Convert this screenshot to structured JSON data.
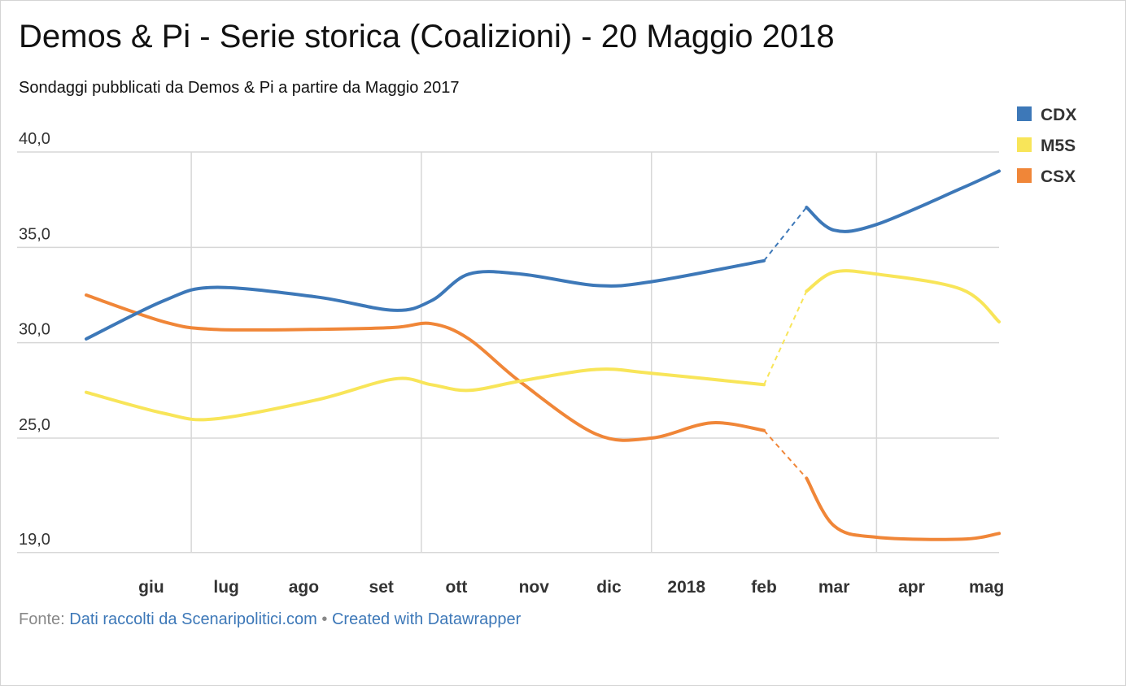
{
  "title": "Demos & Pi - Serie storica (Coalizioni) - 20 Maggio 2018",
  "subtitle": "Sondaggi pubblicati da Demos & Pi a partire da Maggio 2017",
  "footer": {
    "source_label": "Fonte:",
    "source_link": "Dati raccolti da Scenaripolitici.com",
    "separator": "•",
    "credit_link": "Created with Datawrapper"
  },
  "chart_data": {
    "type": "line",
    "ytick_labels": [
      "40,0",
      "35,0",
      "30,0",
      "25,0",
      "19,0"
    ],
    "yticks": [
      40,
      35,
      30,
      25,
      19
    ],
    "ylim": [
      19,
      40
    ],
    "xlim": [
      "2017-05-20",
      "2018-05-20"
    ],
    "xtick_labels": [
      "giu",
      "lug",
      "ago",
      "set",
      "ott",
      "nov",
      "dic",
      "2018",
      "feb",
      "mar",
      "apr",
      "mag"
    ],
    "xticks": [
      "2017-06-15",
      "2017-07-15",
      "2017-08-15",
      "2017-09-15",
      "2017-10-15",
      "2017-11-15",
      "2017-12-15",
      "2018-01-15",
      "2018-02-15",
      "2018-03-15",
      "2018-04-15",
      "2018-05-15"
    ],
    "grid_x": [
      "2017-07-01",
      "2017-10-01",
      "2018-01-01",
      "2018-04-01"
    ],
    "gap": [
      "2018-02-15",
      "2018-03-04"
    ],
    "legend_position": "top-right",
    "series": [
      {
        "name": "CDX",
        "color": "#3d78b8",
        "points": [
          [
            "2017-05-20",
            30.2
          ],
          [
            "2017-06-20",
            32.2
          ],
          [
            "2017-07-10",
            32.9
          ],
          [
            "2017-08-20",
            32.4
          ],
          [
            "2017-09-20",
            31.7
          ],
          [
            "2017-10-05",
            32.2
          ],
          [
            "2017-10-20",
            33.6
          ],
          [
            "2017-11-10",
            33.6
          ],
          [
            "2017-12-10",
            33.0
          ],
          [
            "2018-01-01",
            33.2
          ],
          [
            "2018-02-15",
            34.3
          ],
          [
            "2018-03-04",
            37.1
          ],
          [
            "2018-03-15",
            35.9
          ],
          [
            "2018-04-01",
            36.2
          ],
          [
            "2018-05-05",
            38.1
          ],
          [
            "2018-05-20",
            39.0
          ]
        ]
      },
      {
        "name": "M5S",
        "color": "#f8e559",
        "points": [
          [
            "2017-05-20",
            27.4
          ],
          [
            "2017-06-20",
            26.3
          ],
          [
            "2017-07-10",
            26.0
          ],
          [
            "2017-08-20",
            27.0
          ],
          [
            "2017-09-20",
            28.1
          ],
          [
            "2017-10-05",
            27.8
          ],
          [
            "2017-10-20",
            27.5
          ],
          [
            "2017-11-10",
            28.0
          ],
          [
            "2017-12-10",
            28.6
          ],
          [
            "2018-01-01",
            28.4
          ],
          [
            "2018-02-15",
            27.8
          ],
          [
            "2018-03-04",
            32.7
          ],
          [
            "2018-03-15",
            33.7
          ],
          [
            "2018-04-01",
            33.6
          ],
          [
            "2018-05-05",
            32.8
          ],
          [
            "2018-05-20",
            31.1
          ]
        ]
      },
      {
        "name": "CSX",
        "color": "#f08638",
        "points": [
          [
            "2017-05-20",
            32.5
          ],
          [
            "2017-06-20",
            31.1
          ],
          [
            "2017-07-10",
            30.7
          ],
          [
            "2017-08-20",
            30.7
          ],
          [
            "2017-09-20",
            30.8
          ],
          [
            "2017-10-05",
            31.0
          ],
          [
            "2017-10-20",
            30.2
          ],
          [
            "2017-11-10",
            27.9
          ],
          [
            "2017-12-10",
            25.2
          ],
          [
            "2018-01-01",
            25.0
          ],
          [
            "2018-01-25",
            25.8
          ],
          [
            "2018-02-15",
            25.4
          ],
          [
            "2018-03-04",
            22.9
          ],
          [
            "2018-03-15",
            20.4
          ],
          [
            "2018-04-01",
            19.8
          ],
          [
            "2018-05-05",
            19.7
          ],
          [
            "2018-05-20",
            20.0
          ]
        ]
      }
    ]
  }
}
